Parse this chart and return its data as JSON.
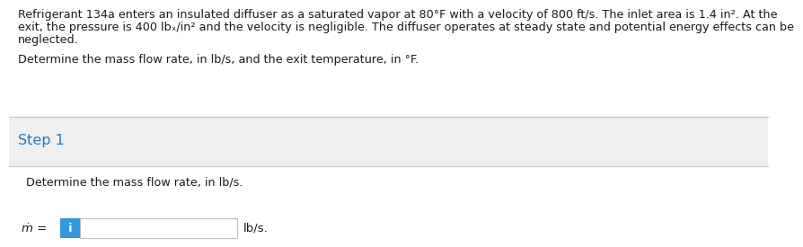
{
  "bg_color": "#efefef",
  "white": "#ffffff",
  "step_color": "#2a7ab5",
  "text_color": "#1a1a1a",
  "input_box_color": "#3399dd",
  "input_box_text": "i",
  "line_color": "#c8c8c8",
  "line1_text": "Refrigerant 134a enters an insulated diffuser as a saturated vapor at 80°F with a velocity of 800 ft/s. The inlet area is 1.4 in². At the",
  "line2_text": "exit, the pressure is 400 lbₓ/in² and the velocity is negligible. The diffuser operates at steady state and potential energy effects can be",
  "line3_text": "neglected.",
  "question_text": "Determine the mass flow rate, in lb/s, and the exit temperature, in °F.",
  "step_label": "Step 1",
  "step_sub": "Determine the mass flow rate, in lb/s.",
  "mdot_label": "ṁ =",
  "unit_label": "lb/s.",
  "para_fontsize": 9.2,
  "question_fontsize": 9.2,
  "step_fontsize": 11.5,
  "sub_fontsize": 9.2,
  "eq_fontsize": 9.5
}
